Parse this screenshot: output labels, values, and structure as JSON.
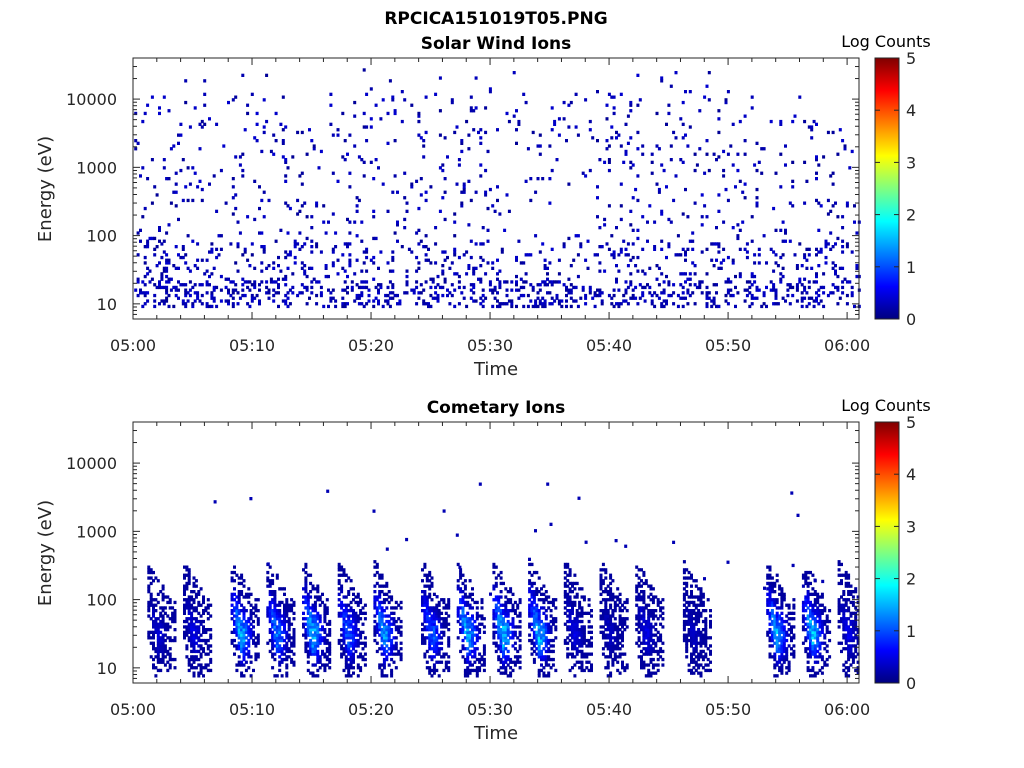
{
  "figure_title": "RPCICA151019T05.PNG",
  "chart_data": [
    {
      "type": "heatmap",
      "title": "Solar Wind Ions",
      "xlabel": "Time",
      "ylabel": "Energy (eV)",
      "x_ticks": [
        "05:00",
        "05:10",
        "05:20",
        "05:30",
        "05:40",
        "05:50",
        "06:00"
      ],
      "y_ticks": [
        "10",
        "100",
        "1000",
        "10000"
      ],
      "y_scale": "log",
      "ylim": [
        6,
        40000
      ],
      "xlim": [
        "05:00",
        "06:01"
      ],
      "colorbar": {
        "label": "Log Counts",
        "min": 0,
        "max": 5,
        "ticks": [
          "0",
          "1",
          "2",
          "3",
          "4",
          "5"
        ],
        "colormap": "jet"
      },
      "description_of_values": "sparse scattered single counts (log counts ~0-0.3) at all energies 10-10000 eV throughout 05:00-06:00",
      "grid": false
    },
    {
      "type": "heatmap",
      "title": "Cometary Ions",
      "xlabel": "Time",
      "ylabel": "Energy (eV)",
      "x_ticks": [
        "05:00",
        "05:10",
        "05:20",
        "05:30",
        "05:40",
        "05:50",
        "06:00"
      ],
      "y_ticks": [
        "10",
        "100",
        "1000",
        "10000"
      ],
      "y_scale": "log",
      "ylim": [
        6,
        40000
      ],
      "xlim": [
        "05:00",
        "06:01"
      ],
      "colorbar": {
        "label": "Log Counts",
        "min": 0,
        "max": 5,
        "ticks": [
          "0",
          "1",
          "2",
          "3",
          "4",
          "5"
        ],
        "colormap": "jet"
      },
      "bursts": [
        {
          "time": "05:02",
          "peak_log_counts": 0.5
        },
        {
          "time": "05:05",
          "peak_log_counts": 0.6
        },
        {
          "time": "05:09",
          "peak_log_counts": 1.8
        },
        {
          "time": "05:12",
          "peak_log_counts": 1.5
        },
        {
          "time": "05:15",
          "peak_log_counts": 1.9
        },
        {
          "time": "05:18",
          "peak_log_counts": 1.3
        },
        {
          "time": "05:21",
          "peak_log_counts": 1.7
        },
        {
          "time": "05:25",
          "peak_log_counts": 1.3
        },
        {
          "time": "05:28",
          "peak_log_counts": 1.8
        },
        {
          "time": "05:31",
          "peak_log_counts": 2.0
        },
        {
          "time": "05:34",
          "peak_log_counts": 1.9
        },
        {
          "time": "05:37",
          "peak_log_counts": 0.6
        },
        {
          "time": "05:40",
          "peak_log_counts": 0.4
        },
        {
          "time": "05:43",
          "peak_log_counts": 0.6
        },
        {
          "time": "05:47",
          "peak_log_counts": 0.4
        },
        {
          "time": "05:54",
          "peak_log_counts": 1.8
        },
        {
          "time": "05:57",
          "peak_log_counts": 1.9
        },
        {
          "time": "06:00",
          "peak_log_counts": 0.6
        }
      ],
      "grid": false
    }
  ]
}
